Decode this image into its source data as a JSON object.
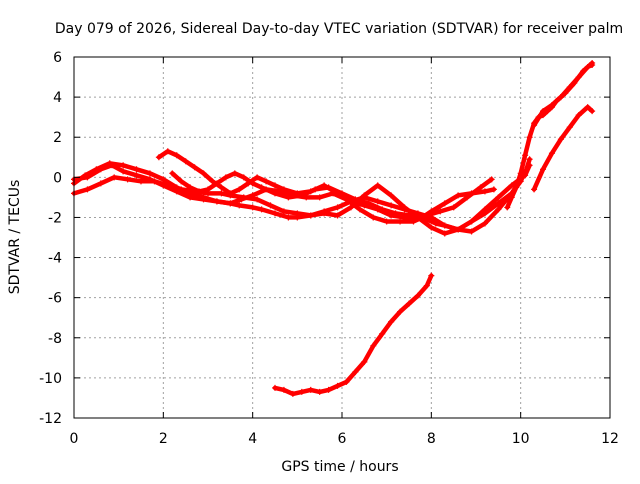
{
  "chart_data": {
    "type": "line",
    "title": "Day 079 of 2026, Sidereal Day-to-day VTEC variation (SDTVAR) for receiver palm",
    "xlabel": "GPS time / hours",
    "ylabel": "SDTVAR / TECUs",
    "xlim": [
      0,
      12
    ],
    "ylim": [
      -12,
      6
    ],
    "xticks": [
      "0",
      "2",
      "4",
      "6",
      "8",
      "10",
      "12"
    ],
    "yticks": [
      "6",
      "4",
      "2",
      "0",
      "-2",
      "-4",
      "-6",
      "-8",
      "-10",
      "-12"
    ],
    "grid": true,
    "legend": "none",
    "marker": "+",
    "series_color": "#ff0000",
    "series": [
      {
        "name": "track-1",
        "x": [
          0.0,
          0.3,
          0.6,
          0.85,
          1.1,
          1.4,
          1.7,
          2.0,
          2.3,
          2.6,
          2.9,
          3.2,
          3.5,
          3.75,
          4.0,
          4.3,
          4.6,
          4.9,
          5.2,
          5.5,
          5.8,
          6.1,
          6.4,
          6.7,
          7.0,
          7.3,
          7.6,
          7.9,
          8.2,
          8.5,
          8.8,
          9.1,
          9.35
        ],
        "y": [
          -0.1,
          0.0,
          0.4,
          0.6,
          0.3,
          0.1,
          -0.1,
          -0.4,
          -0.7,
          -1.0,
          -1.1,
          -1.2,
          -1.3,
          -1.1,
          -0.9,
          -0.6,
          -0.7,
          -0.9,
          -1.0,
          -1.0,
          -0.8,
          -1.1,
          -1.6,
          -2.0,
          -2.2,
          -2.2,
          -2.2,
          -1.9,
          -1.7,
          -1.5,
          -1.0,
          -0.5,
          -0.1
        ]
      },
      {
        "name": "track-2",
        "x": [
          0.0,
          0.3,
          0.6,
          0.9,
          1.2,
          1.5,
          1.8,
          2.1,
          2.4,
          2.7,
          3.0,
          3.3,
          3.5,
          3.8,
          4.1,
          4.4,
          4.7,
          5.0,
          5.3,
          5.6,
          5.9,
          6.2,
          6.5,
          6.8,
          7.1,
          7.4,
          7.7,
          8.0,
          8.3,
          8.6,
          8.9,
          9.2,
          9.5,
          9.8,
          10.0,
          10.1
        ],
        "y": [
          -0.8,
          -0.6,
          -0.3,
          0.0,
          -0.1,
          -0.2,
          -0.2,
          -0.4,
          -0.6,
          -0.7,
          -0.8,
          -0.8,
          -0.9,
          -1.0,
          -1.1,
          -1.4,
          -1.7,
          -1.8,
          -1.9,
          -1.7,
          -1.5,
          -1.2,
          -1.0,
          -1.2,
          -1.4,
          -1.6,
          -1.8,
          -2.0,
          -2.4,
          -2.6,
          -2.2,
          -1.8,
          -1.3,
          -0.8,
          -0.2,
          0.3
        ]
      },
      {
        "name": "track-3",
        "x": [
          0.0,
          0.25,
          0.5,
          0.8,
          1.1,
          1.4,
          1.7,
          2.0,
          2.3,
          2.6,
          2.9,
          3.2,
          3.5,
          3.7,
          4.0,
          4.2,
          4.5,
          4.8,
          5.0,
          5.3,
          5.6,
          5.9,
          6.2,
          6.5,
          6.8,
          7.1,
          7.4,
          7.7,
          8.0,
          8.3,
          8.6,
          8.9,
          9.2,
          9.5,
          9.8,
          10.1,
          10.2
        ],
        "y": [
          -0.3,
          0.1,
          0.4,
          0.7,
          0.6,
          0.4,
          0.2,
          -0.1,
          -0.5,
          -0.8,
          -1.0,
          -1.2,
          -1.3,
          -1.4,
          -1.5,
          -1.6,
          -1.8,
          -2.0,
          -2.0,
          -1.9,
          -1.8,
          -1.9,
          -1.5,
          -0.9,
          -0.4,
          -0.9,
          -1.5,
          -2.0,
          -2.5,
          -2.8,
          -2.6,
          -2.2,
          -1.6,
          -1.0,
          -0.4,
          0.1,
          0.6
        ]
      },
      {
        "name": "track-4",
        "x": [
          1.9,
          2.1,
          2.3,
          2.5,
          2.7,
          2.9,
          3.1,
          3.3,
          3.5,
          3.7,
          3.9,
          4.1,
          4.3,
          4.5,
          4.7,
          5.0,
          5.3,
          5.6,
          5.9,
          6.2,
          6.5,
          6.8,
          7.1,
          7.4,
          7.7,
          7.9,
          8.1,
          8.3,
          8.6,
          8.9,
          9.2,
          9.5,
          9.8,
          10.1,
          10.2
        ],
        "y": [
          1.0,
          1.3,
          1.1,
          0.8,
          0.5,
          0.2,
          -0.2,
          -0.5,
          -0.8,
          -0.6,
          -0.3,
          0.0,
          -0.2,
          -0.4,
          -0.6,
          -0.8,
          -0.7,
          -0.4,
          -0.8,
          -1.2,
          -1.4,
          -1.6,
          -1.9,
          -2.0,
          -2.0,
          -2.1,
          -2.3,
          -2.4,
          -2.6,
          -2.7,
          -2.3,
          -1.6,
          -0.8,
          0.2,
          0.9
        ]
      },
      {
        "name": "track-5",
        "x": [
          2.2,
          2.4,
          2.6,
          2.8,
          3.0,
          3.2,
          3.4,
          3.6,
          3.8,
          4.0,
          4.2,
          4.5,
          4.8,
          5.1,
          5.4,
          5.7,
          6.0,
          6.3,
          6.6,
          6.9,
          7.2,
          7.5,
          7.8,
          8.0,
          8.3,
          8.6,
          8.9,
          9.2,
          9.4
        ],
        "y": [
          0.2,
          -0.2,
          -0.5,
          -0.7,
          -0.6,
          -0.3,
          0.0,
          0.2,
          0.0,
          -0.3,
          -0.5,
          -0.8,
          -1.0,
          -0.9,
          -0.6,
          -0.5,
          -0.8,
          -1.1,
          -1.3,
          -1.6,
          -1.8,
          -1.9,
          -2.0,
          -1.7,
          -1.3,
          -0.9,
          -0.8,
          -0.7,
          -0.6
        ]
      },
      {
        "name": "track-6",
        "x": [
          4.5,
          4.7,
          4.9,
          5.1,
          5.3,
          5.5,
          5.7,
          5.9,
          6.1,
          6.3,
          6.5,
          6.7,
          6.9,
          7.1,
          7.3,
          7.5,
          7.7,
          7.9,
          8.0
        ],
        "y": [
          -10.5,
          -10.6,
          -10.8,
          -10.7,
          -10.6,
          -10.7,
          -10.6,
          -10.4,
          -10.2,
          -9.7,
          -9.2,
          -8.4,
          -7.8,
          -7.2,
          -6.7,
          -6.3,
          -5.9,
          -5.4,
          -4.9
        ]
      },
      {
        "name": "track-7",
        "x": [
          10.3,
          10.5,
          10.7,
          10.9,
          11.1,
          11.3,
          11.5,
          11.6
        ],
        "y": [
          2.6,
          3.3,
          3.6,
          4.0,
          4.5,
          5.0,
          5.5,
          5.6
        ]
      },
      {
        "name": "track-8",
        "x": [
          10.3,
          10.5,
          10.7,
          10.9,
          11.1,
          11.3,
          11.5,
          11.6
        ],
        "y": [
          -0.6,
          0.4,
          1.2,
          1.9,
          2.5,
          3.1,
          3.5,
          3.3
        ]
      },
      {
        "name": "track-9",
        "x": [
          9.7,
          9.8,
          9.9,
          10.0,
          10.1,
          10.2,
          10.3,
          10.4,
          10.5,
          10.6,
          10.7,
          10.8,
          10.9,
          11.0,
          11.2,
          11.4,
          11.6
        ],
        "y": [
          -1.5,
          -1.0,
          -0.5,
          0.2,
          1.1,
          2.0,
          2.7,
          3.0,
          3.1,
          3.3,
          3.5,
          3.8,
          4.0,
          4.2,
          4.7,
          5.3,
          5.7
        ]
      }
    ]
  }
}
